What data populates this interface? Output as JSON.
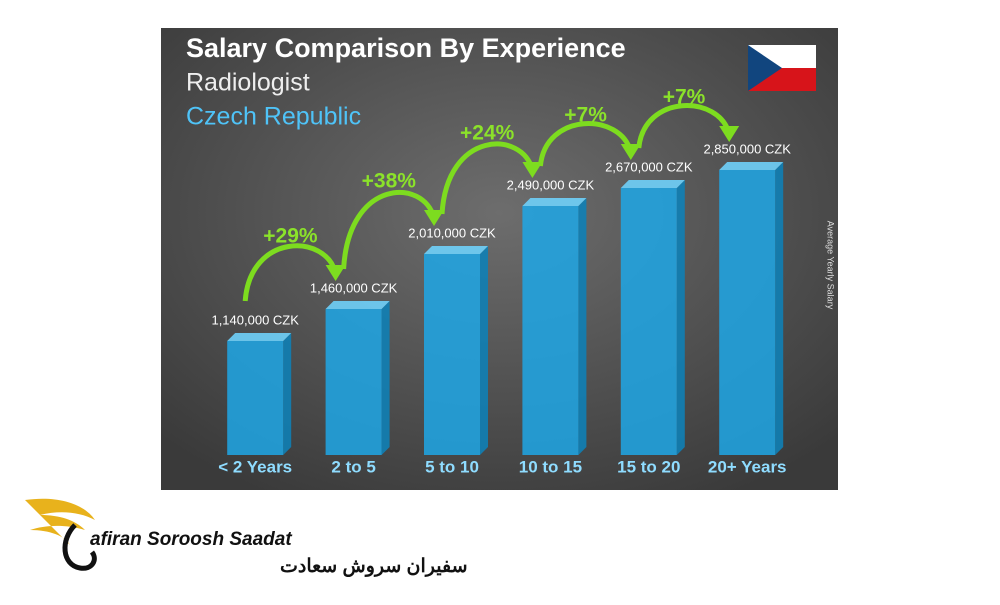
{
  "chart_data": {
    "type": "bar",
    "title": "Salary Comparison By Experience",
    "subtitle": "Radiologist",
    "country": "Czech Republic",
    "y_label": "Average Yearly Salary",
    "categories": [
      "< 2 Years",
      "2 to 5",
      "5 to 10",
      "10 to 15",
      "15 to 20",
      "20+ Years"
    ],
    "values": [
      1140000,
      1460000,
      2010000,
      2490000,
      2670000,
      2850000
    ],
    "value_labels": [
      "1,140,000 CZK",
      "1,460,000 CZK",
      "2,010,000 CZK",
      "2,490,000 CZK",
      "2,670,000 CZK",
      "2,850,000 CZK"
    ],
    "annotations": [
      "+29%",
      "+38%",
      "+24%",
      "+7%",
      "+7%"
    ],
    "color": "#1ea7e6"
  },
  "logo": {
    "name": "afiran Soroosh Saadat",
    "name_fa": "سفیران سروش سعادت"
  }
}
